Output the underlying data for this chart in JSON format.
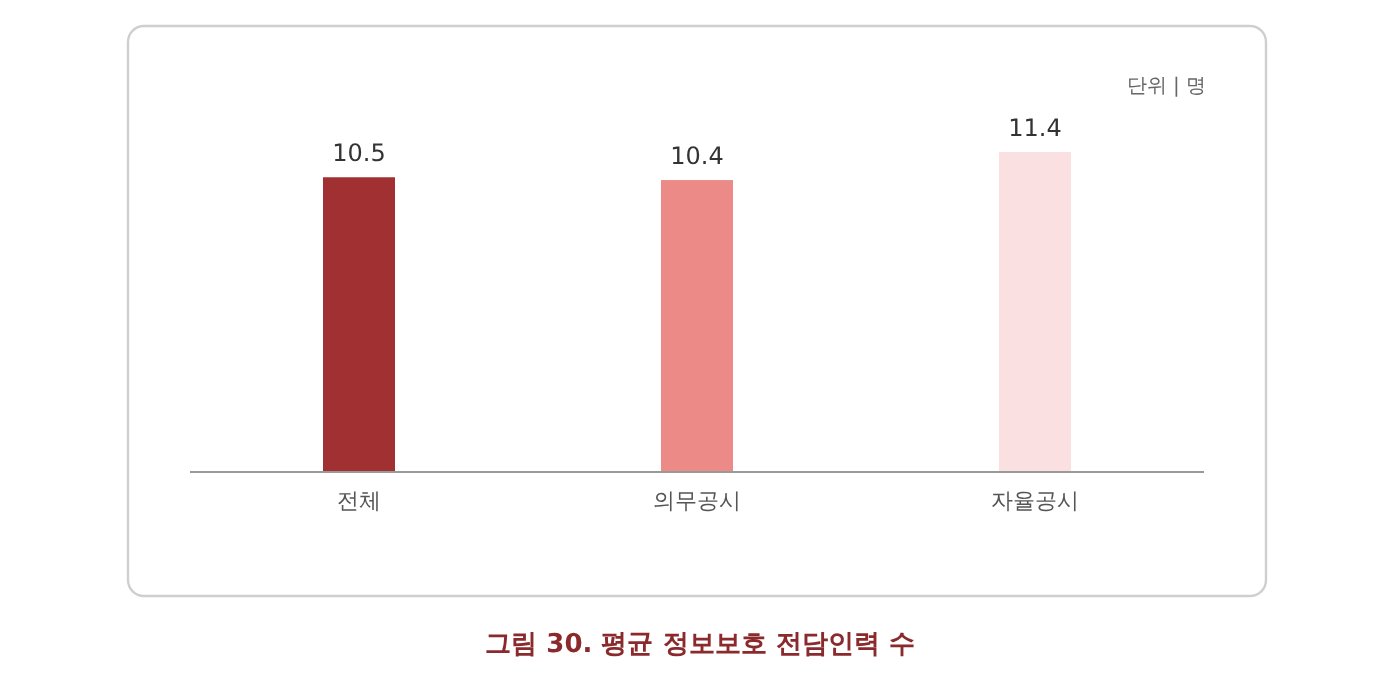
{
  "chart_data": {
    "type": "bar",
    "title": "그림 30. 평균 정보보호 전담인력 수",
    "categories": [
      "전체",
      "의무공시",
      "자율공시"
    ],
    "values": [
      10.5,
      10.4,
      11.4
    ],
    "colors": [
      "#a03031",
      "#ec8a88",
      "#fbe0e1"
    ],
    "data_labels": true,
    "annotations": [
      "단위 | 명"
    ]
  }
}
